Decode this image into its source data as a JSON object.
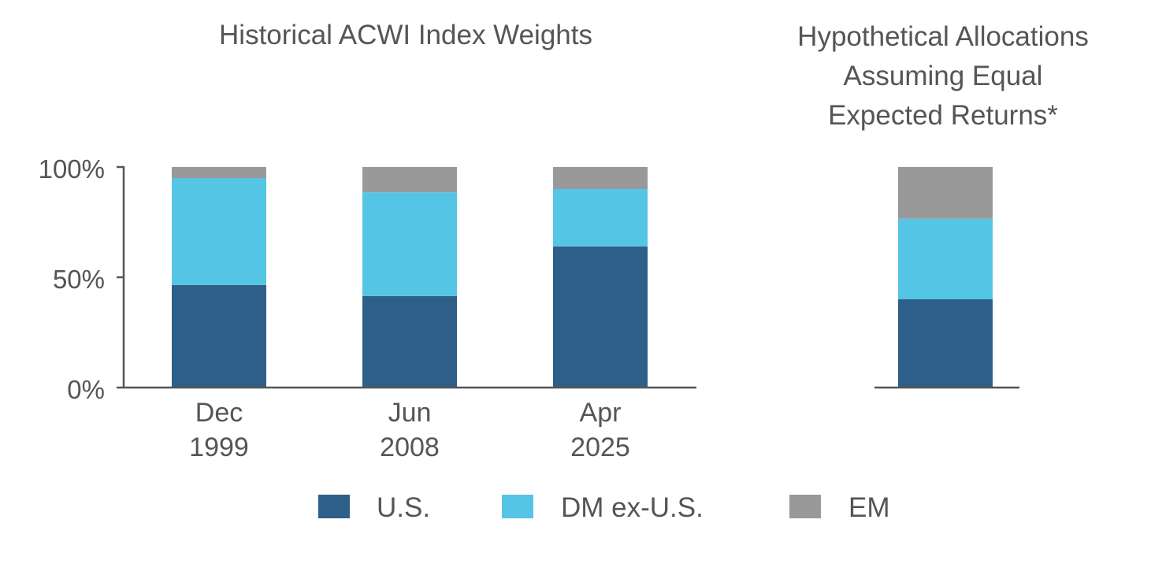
{
  "chart_data": [
    {
      "type": "bar",
      "stacked": true,
      "title": "Historical ACWI Index Weights",
      "categories": [
        [
          "Dec",
          "1999"
        ],
        [
          "Jun",
          "2008"
        ],
        [
          "Apr",
          "2025"
        ]
      ],
      "ylim": [
        0,
        100
      ],
      "yticks": [
        "0%",
        "50%",
        "100%"
      ],
      "series": [
        {
          "name": "U.S.",
          "values": [
            46.5,
            41.5,
            64
          ],
          "color": "#2d5f88"
        },
        {
          "name": "DM ex-U.S.",
          "values": [
            48.5,
            47,
            26
          ],
          "color": "#55c5e5"
        },
        {
          "name": "EM",
          "values": [
            5,
            11.5,
            10
          ],
          "color": "#999999"
        }
      ],
      "grid": false
    },
    {
      "type": "bar",
      "stacked": true,
      "title": [
        "Hypothetical Allocations",
        "Assuming Equal",
        "Expected Returns*"
      ],
      "categories": [
        ""
      ],
      "ylim": [
        0,
        100
      ],
      "series": [
        {
          "name": "U.S.",
          "values": [
            40
          ],
          "color": "#2d5f88"
        },
        {
          "name": "DM ex-U.S.",
          "values": [
            36.5
          ],
          "color": "#55c5e5"
        },
        {
          "name": "EM",
          "values": [
            23.5
          ],
          "color": "#999999"
        }
      ],
      "grid": false
    }
  ],
  "legend": {
    "placement": "bottom",
    "items": [
      {
        "label": "U.S.",
        "color": "#2d5f88"
      },
      {
        "label": "DM ex-U.S.",
        "color": "#55c5e5"
      },
      {
        "label": "EM",
        "color": "#999999"
      }
    ]
  }
}
